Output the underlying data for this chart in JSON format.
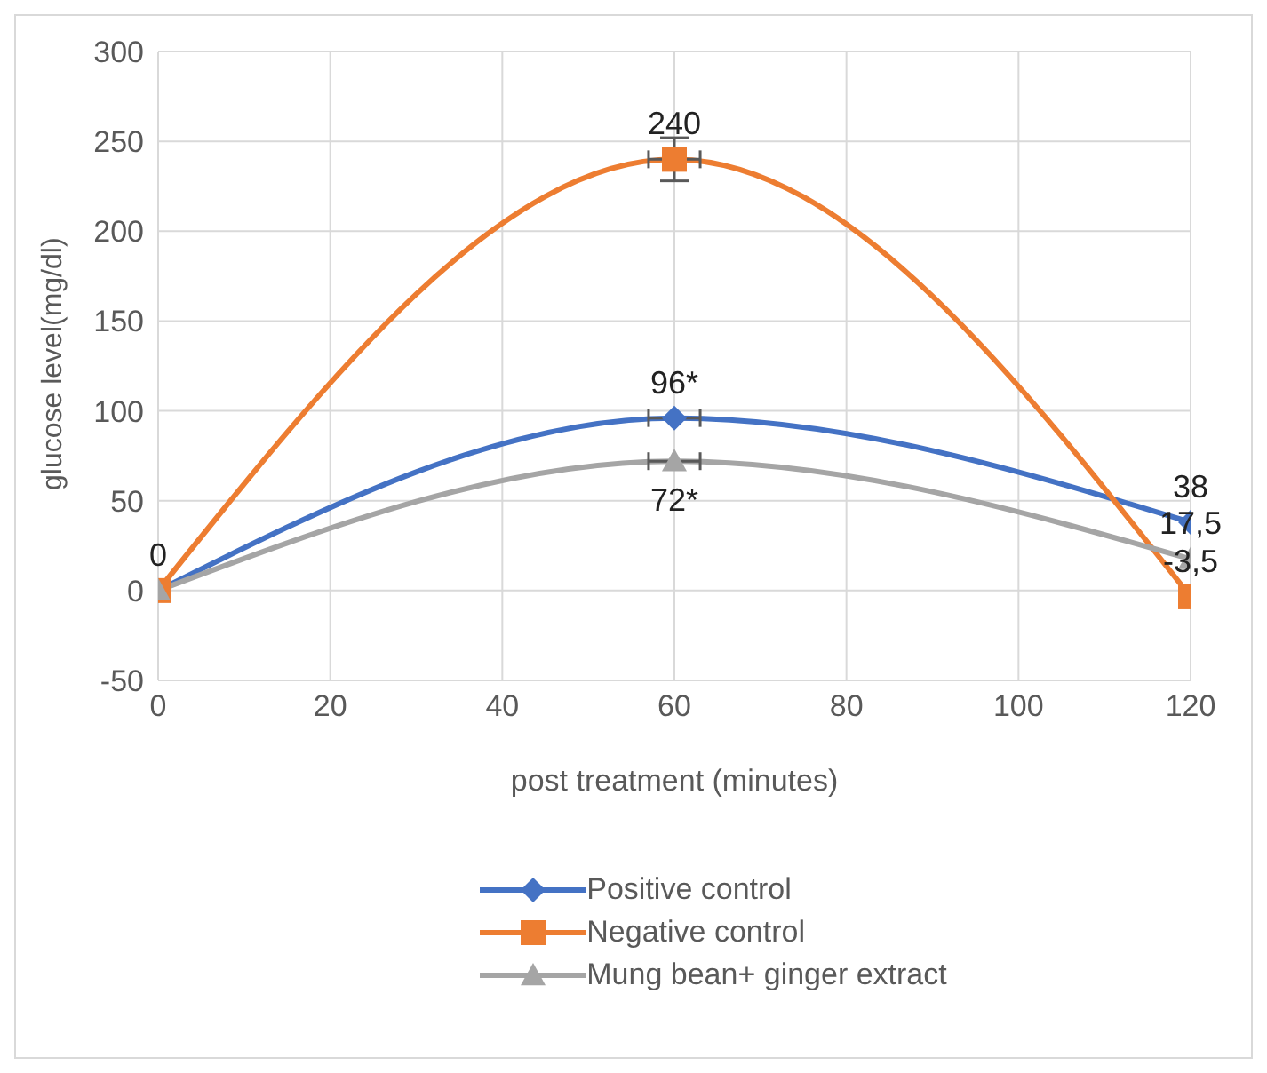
{
  "chart_data": {
    "type": "line",
    "xlabel": "post treatment (minutes)",
    "ylabel": "glucose level(mg/dl)",
    "x": [
      0,
      60,
      120
    ],
    "series": [
      {
        "name": "Positive control",
        "color": "#4472c4",
        "marker": "diamond",
        "values": [
          0,
          96,
          38
        ],
        "value_labels": [
          null,
          "96*",
          "38"
        ],
        "xerrors": [
          null,
          3,
          null
        ]
      },
      {
        "name": "Negative control",
        "color": "#ed7d31",
        "marker": "square",
        "values": [
          0,
          240,
          -3.5
        ],
        "value_labels": [
          "0",
          "240",
          "-3,5"
        ],
        "errors": [
          null,
          12,
          null
        ],
        "xerrors": [
          null,
          3,
          null
        ]
      },
      {
        "name": "Mung bean+ ginger extract",
        "color": "#a5a5a5",
        "marker": "triangle",
        "values": [
          0,
          72,
          17.5
        ],
        "value_labels": [
          null,
          "72*",
          "17,5"
        ],
        "xerrors": [
          null,
          3,
          null
        ]
      }
    ],
    "xlim": [
      0,
      120
    ],
    "xticks": [
      0,
      20,
      40,
      60,
      80,
      100,
      120
    ],
    "ylim": [
      -50,
      300
    ],
    "yticks": [
      -50,
      0,
      50,
      100,
      150,
      200,
      250,
      300
    ],
    "grid": true,
    "legend": "bottom",
    "line_style": "solid"
  }
}
